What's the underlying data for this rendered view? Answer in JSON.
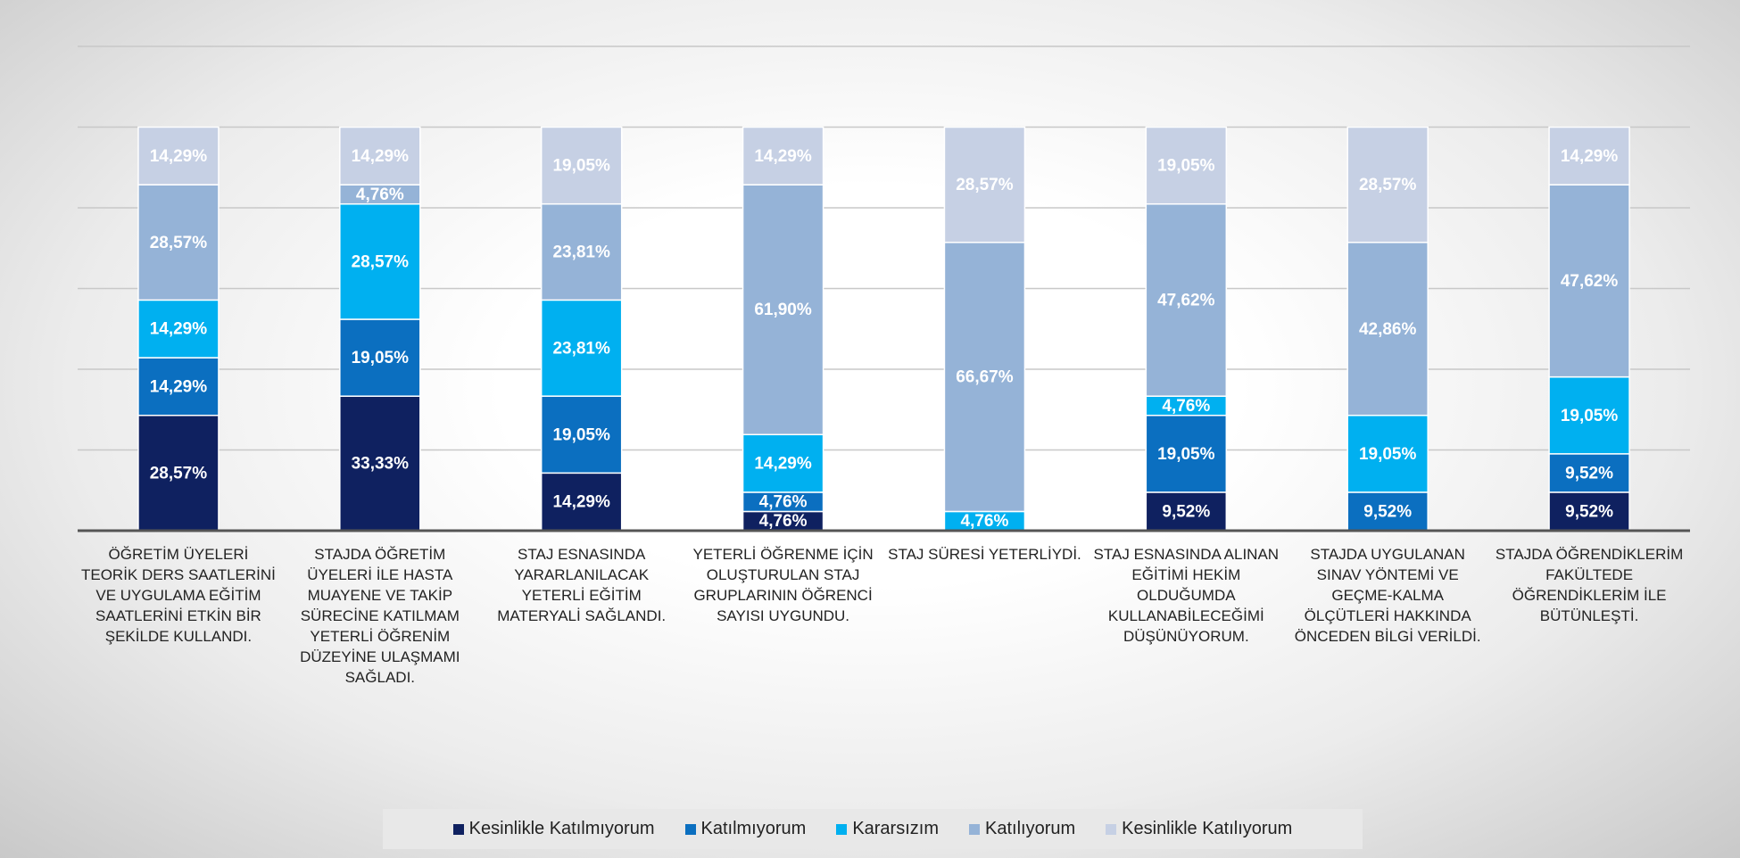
{
  "chart_data": {
    "type": "stacked-bar",
    "categories": [
      "ÖĞRETİM ÜYELERİ TEORİK DERS SAATLERİNİ VE UYGULAMA EĞİTİM SAATLERİNİ ETKİN BİR ŞEKİLDE KULLANDI.",
      "STAJDA ÖĞRETİM ÜYELERİ İLE HASTA MUAYENE VE TAKİP SÜRECİNE KATILMAM YETERLİ ÖĞRENİM DÜZEYİNE ULAŞMAMI SAĞLADI.",
      "STAJ ESNASINDA YARARLANILACAK YETERLİ EĞİTİM MATERYALİ SAĞLANDI.",
      "YETERLİ ÖĞRENME İÇİN OLUŞTURULAN STAJ GRUPLARININ ÖĞRENCİ SAYISI UYGUNDU.",
      "STAJ SÜRESİ YETERLİYDİ.",
      "STAJ ESNASINDA ALINAN EĞİTİMİ HEKİM OLDUĞUMDA KULLANABİLECEĞİMİ DÜŞÜNÜYORUM.",
      "STAJDA UYGULANAN SINAV YÖNTEMİ VE GEÇME-KALMA ÖLÇÜTLERİ HAKKINDA ÖNCEDEN BİLGİ VERİLDİ.",
      "STAJDA ÖĞRENDİKLERİM FAKÜLTEDE ÖĞRENDİKLERİM İLE BÜTÜNLEŞTİ."
    ],
    "series": [
      {
        "name": "Kesinlikle Katılmıyorum",
        "color": "#0f2160",
        "values": [
          28.57,
          33.33,
          14.29,
          4.76,
          null,
          9.52,
          null,
          9.52
        ],
        "value_labels": [
          "28,57%",
          "33,33%",
          "14,29%",
          "4,76%",
          null,
          "9,52%",
          null,
          "9,52%"
        ]
      },
      {
        "name": "Katılmıyorum",
        "color": "#0b6fc0",
        "values": [
          14.29,
          19.05,
          19.05,
          4.76,
          null,
          19.05,
          9.52,
          9.52
        ],
        "value_labels": [
          "14,29%",
          "19,05%",
          "19,05%",
          "4,76%",
          null,
          "19,05%",
          "9,52%",
          "9,52%"
        ]
      },
      {
        "name": "Kararsızım",
        "color": "#00b0f0",
        "values": [
          14.29,
          28.57,
          23.81,
          14.29,
          4.76,
          4.76,
          19.05,
          19.05
        ],
        "value_labels": [
          "14,29%",
          "28,57%",
          "23,81%",
          "14,29%",
          "4,76%",
          "4,76%",
          "19,05%",
          "19,05%"
        ]
      },
      {
        "name": "Katılıyorum",
        "color": "#95b3d7",
        "values": [
          28.57,
          4.76,
          23.81,
          61.9,
          66.67,
          47.62,
          42.86,
          47.62
        ],
        "value_labels": [
          "28,57%",
          "4,76%",
          "23,81%",
          "61,90%",
          "66,67%",
          "47,62%",
          "42,86%",
          "47,62%"
        ]
      },
      {
        "name": "Kesinlikle Katılıyorum",
        "color": "#c6d0e4",
        "values": [
          14.29,
          14.29,
          19.05,
          14.29,
          28.57,
          19.05,
          28.57,
          14.29
        ],
        "value_labels": [
          "14,29%",
          "14,29%",
          "19,05%",
          "14,29%",
          "28,57%",
          "19,05%",
          "28,57%",
          "14,29%"
        ]
      }
    ],
    "ylim": [
      0,
      120
    ],
    "yticks": [
      0,
      20,
      40,
      60,
      80,
      100,
      120
    ],
    "grid": true,
    "legend": "bottom"
  }
}
